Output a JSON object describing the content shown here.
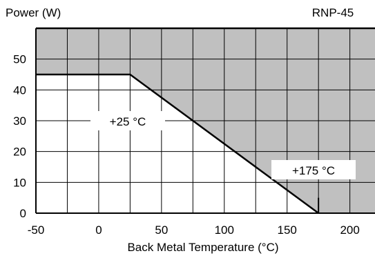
{
  "chart_data": {
    "type": "line",
    "title": "RNP-45",
    "xlabel": "Back Metal Temperature (°C)",
    "ylabel": "Power (W)",
    "xlim": [
      -50,
      220
    ],
    "ylim": [
      0,
      60
    ],
    "x_ticks": [
      -50,
      0,
      50,
      100,
      150,
      200
    ],
    "y_ticks": [
      0,
      10,
      20,
      30,
      40,
      50
    ],
    "x_gridlines": [
      -25,
      0,
      25,
      50,
      75,
      100,
      125,
      150,
      175,
      200
    ],
    "y_gridlines": [
      10,
      20,
      30,
      40,
      50
    ],
    "grid": true,
    "series": [
      {
        "x": [
          -50,
          25,
          175
        ],
        "y": [
          45,
          45,
          0
        ]
      }
    ],
    "annotations": [
      "+25 °C",
      "+175 °C"
    ],
    "colors": {
      "shaded_region": "#c0c0c0",
      "line": "#000000",
      "background": "#ffffff"
    }
  }
}
